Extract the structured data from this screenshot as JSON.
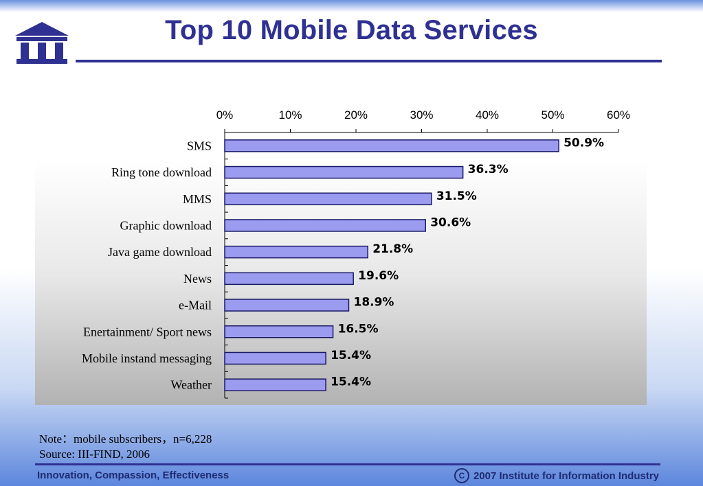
{
  "title": "Top 10 Mobile Data Services",
  "logo": {
    "icon": "building-columns-icon",
    "color": "#2f3192"
  },
  "note": "Note：mobile subscribers，n=6,228",
  "source": "Source: III-FIND, 2006",
  "footer": {
    "left": "Innovation, Compassion, Effectiveness",
    "copyright_symbol": "C",
    "right": "2007 Institute for Information Industry"
  },
  "chart_data": {
    "type": "bar",
    "orientation": "horizontal",
    "title": "",
    "xlabel": "",
    "ylabel": "",
    "categories": [
      "SMS",
      "Ring tone download",
      "MMS",
      "Graphic download",
      "Java game download",
      "News",
      "e-Mail",
      "Enertainment/ Sport news",
      "Mobile instand messaging",
      "Weather"
    ],
    "values": [
      50.9,
      36.3,
      31.5,
      30.6,
      21.8,
      19.6,
      18.9,
      16.5,
      15.4,
      15.4
    ],
    "value_labels": [
      "50.9%",
      "36.3%",
      "31.5%",
      "30.6%",
      "21.8%",
      "19.6%",
      "18.9%",
      "16.5%",
      "15.4%",
      "15.4%"
    ],
    "xlim": [
      0,
      60
    ],
    "xticks": [
      0,
      10,
      20,
      30,
      40,
      50,
      60
    ],
    "xtick_labels": [
      "0%",
      "10%",
      "20%",
      "30%",
      "40%",
      "50%",
      "60%"
    ],
    "x_axis_position": "top",
    "grid": false,
    "legend": "none",
    "bar_color": "#9b9bf0",
    "bar_edge_color": "#1a1a66"
  }
}
